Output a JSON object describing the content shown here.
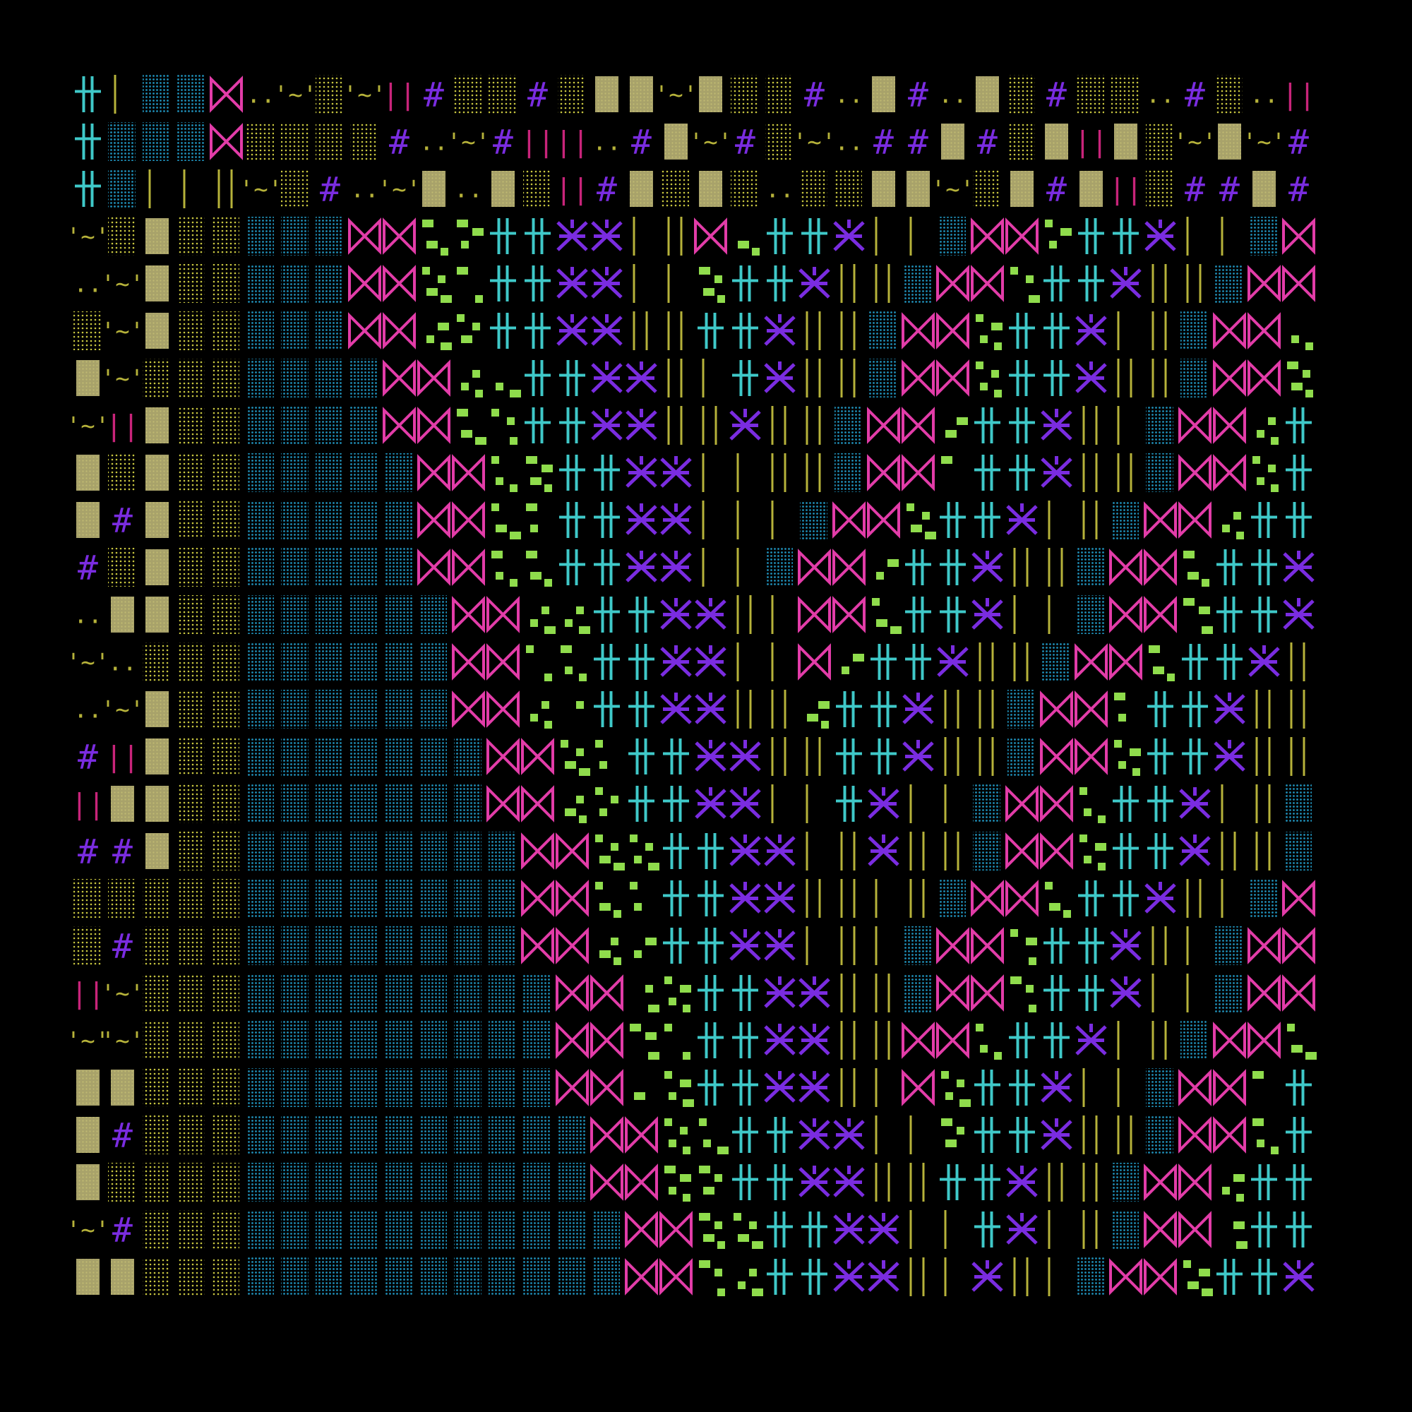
{
  "artwork": {
    "background": "#000000",
    "palette": {
      "teal": "#3fc9c9",
      "blue_dots": "#1f8fb8",
      "magenta": "#e23ca8",
      "violet": "#7a2ce0",
      "olive": "#a8a26a",
      "olive_bright": "#b6b23a",
      "yellow_dots": "#c8c640",
      "lime": "#8fdc4c",
      "crimson": "#c8247a"
    },
    "glyphs": {
      "hash": "#",
      "tilde_face": "'~'",
      "double_dot": "..",
      "double_bar": "||"
    },
    "cell_types": [
      "tee-cross-icon",
      "dot-block-icon",
      "bowtie-icon",
      "star-cross-icon",
      "bar-icon",
      "square-dots-icon",
      "solid-block-icon",
      "hash-glyph",
      "tilde-glyph",
      "dots-glyph"
    ]
  }
}
